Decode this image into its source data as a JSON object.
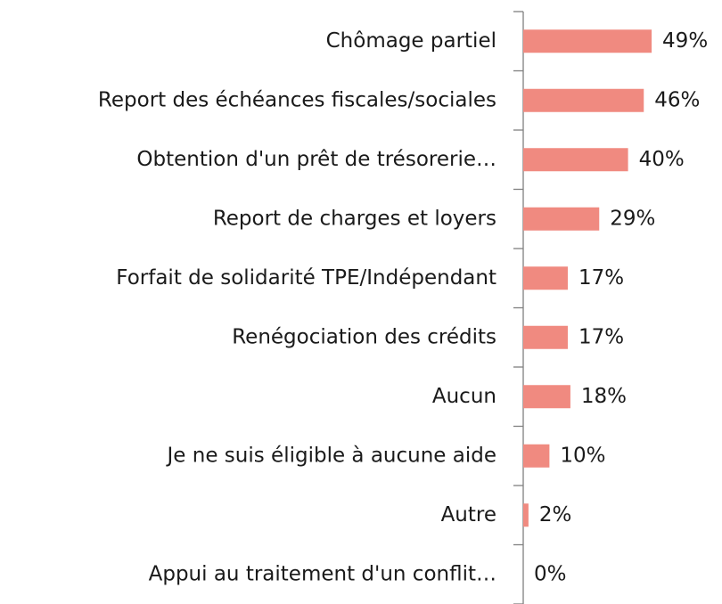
{
  "chart_data": {
    "type": "bar",
    "orientation": "horizontal",
    "categories": [
      "Chômage partiel",
      "Report des échéances fiscales/sociales",
      "Obtention d'un prêt de trésorerie…",
      "Report de charges et loyers",
      "Forfait de solidarité TPE/Indépendant",
      "Renégociation des crédits",
      "Aucun",
      "Je ne suis éligible à aucune aide",
      "Autre",
      "Appui au traitement d'un conflit…"
    ],
    "values": [
      49,
      46,
      40,
      29,
      17,
      17,
      18,
      10,
      2,
      0
    ],
    "value_labels": [
      "49%",
      "46%",
      "40%",
      "29%",
      "17%",
      "17%",
      "18%",
      "10%",
      "2%",
      "0%"
    ],
    "color": "#f08a80"
  }
}
